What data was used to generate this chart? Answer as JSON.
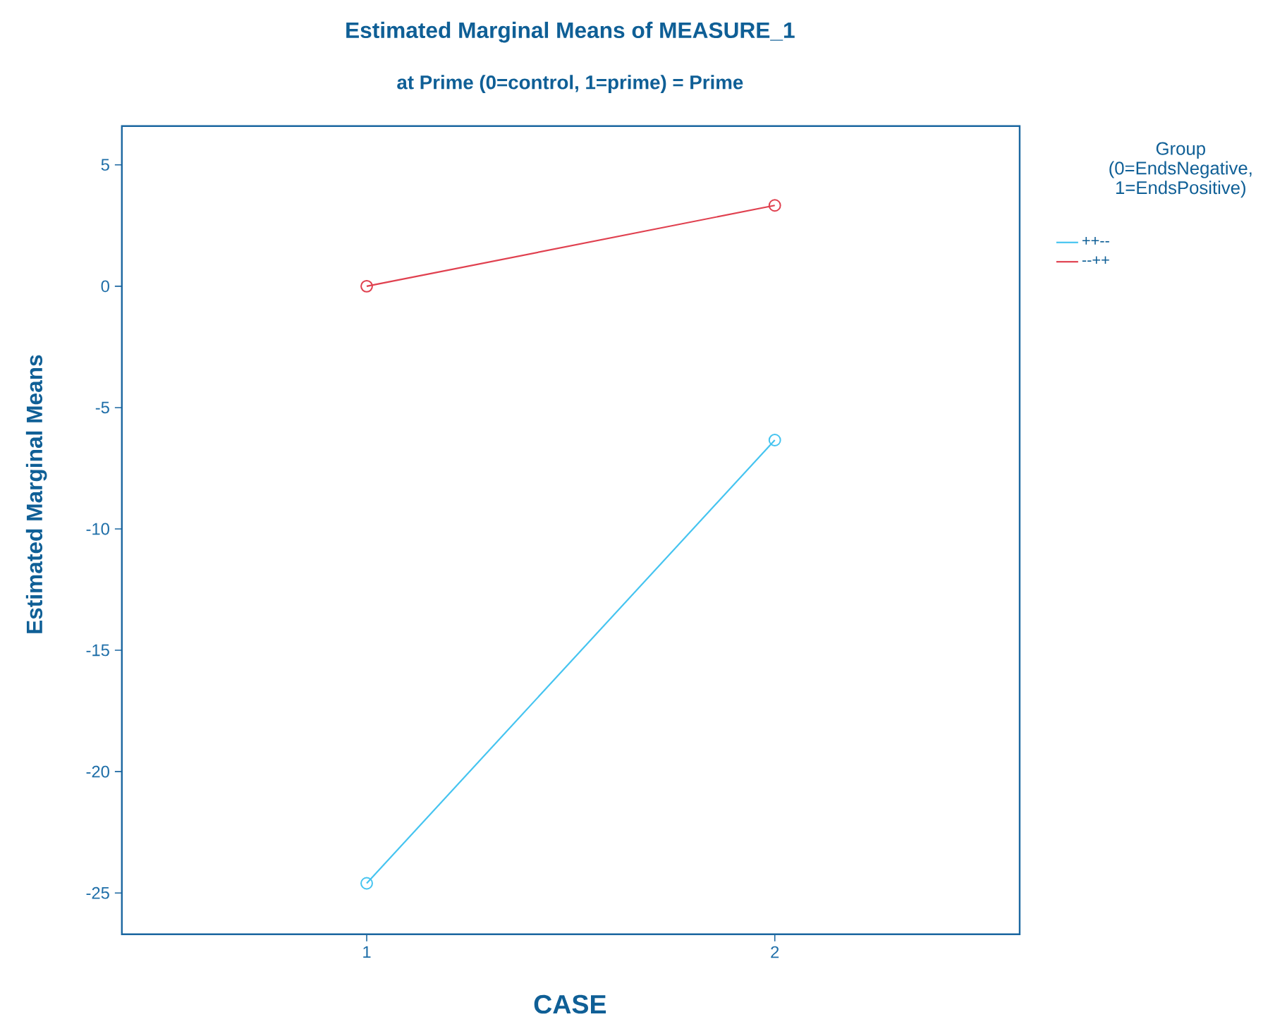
{
  "chart_data": {
    "type": "line",
    "title": "Estimated Marginal Means of MEASURE_1",
    "subtitle": "at Prime (0=control, 1=prime) = Prime",
    "xlabel": "CASE",
    "ylabel": "Estimated Marginal Means",
    "legend_title": "Group (0=EndsNegative, 1=EndsPositive)",
    "categories": [
      "1",
      "2"
    ],
    "series": [
      {
        "name": "++--",
        "color": "#45c4f0",
        "values": [
          -24.6,
          -6.34
        ]
      },
      {
        "name": "--++",
        "color": "#e0404f",
        "values": [
          0,
          3.33
        ]
      }
    ],
    "ylim": [
      -26.7,
      6.6
    ],
    "yticks": [
      -25,
      -20,
      -15,
      -10,
      -5,
      0,
      5
    ],
    "grid": false,
    "legend": "right",
    "marker": "circle",
    "line_style": "solid"
  }
}
